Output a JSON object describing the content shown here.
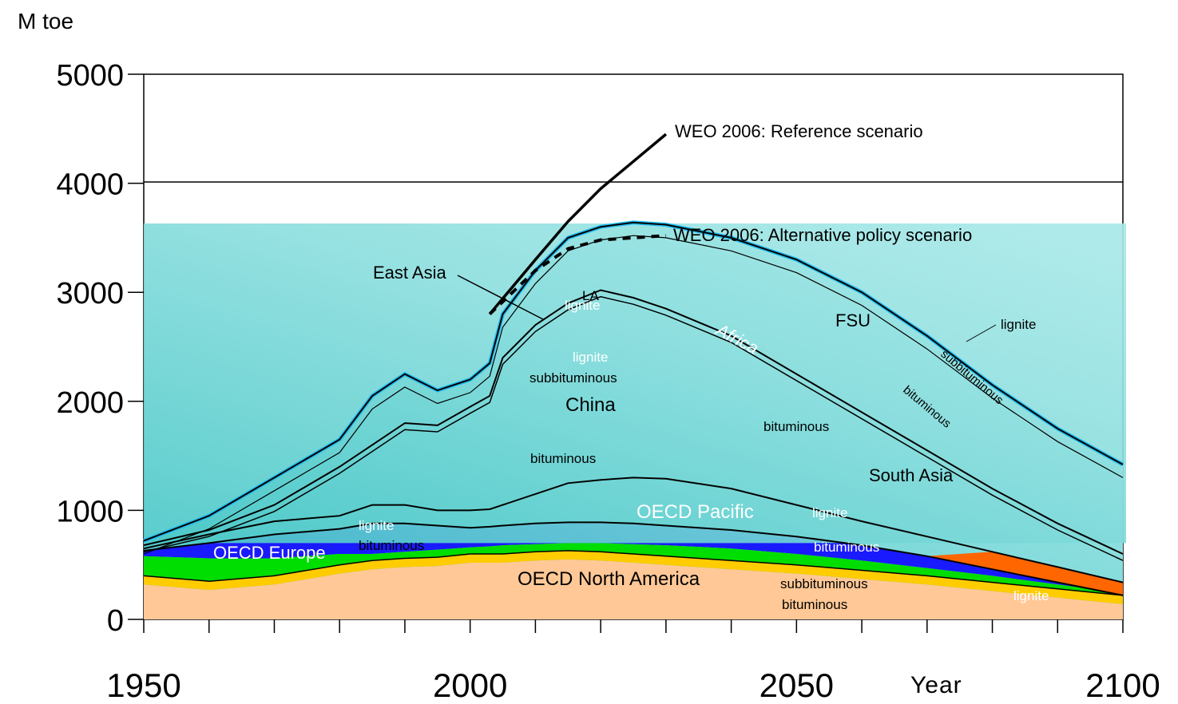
{
  "chart_data": {
    "type": "area",
    "title": "",
    "ylabel": "M toe",
    "xlabel": "Year",
    "xlim": [
      1950,
      2100
    ],
    "ylim": [
      0,
      5000
    ],
    "yticks": [
      "0",
      "1000",
      "2000",
      "3000",
      "4000",
      "5000"
    ],
    "xticks": [
      "1950",
      "2000",
      "2050",
      "2100"
    ],
    "x": [
      1950,
      1960,
      1970,
      1980,
      1985,
      1990,
      1995,
      2000,
      2003,
      2005,
      2010,
      2015,
      2020,
      2025,
      2030,
      2040,
      2050,
      2060,
      2070,
      2080,
      2090,
      2100
    ],
    "series": [
      {
        "name": "OECD North America",
        "color": "#ffc896",
        "values": [
          320,
          270,
          320,
          420,
          460,
          480,
          490,
          520,
          520,
          520,
          540,
          550,
          540,
          520,
          500,
          460,
          420,
          370,
          320,
          260,
          200,
          140
        ]
      },
      {
        "name": "OECD Europe",
        "color": "#00dd00",
        "values": [
          580,
          560,
          560,
          600,
          600,
          620,
          640,
          660,
          670,
          680,
          690,
          700,
          700,
          690,
          680,
          650,
          600,
          540,
          470,
          400,
          320,
          240
        ]
      },
      {
        "name": "OECD Pacific",
        "color": "#55cccc",
        "values": [
          630,
          700,
          780,
          830,
          880,
          880,
          860,
          840,
          850,
          860,
          880,
          890,
          890,
          880,
          860,
          820,
          760,
          680,
          580,
          460,
          340,
          220
        ]
      },
      {
        "name": "South Asia",
        "color": "#55cccc",
        "values": [
          650,
          780,
          900,
          950,
          1050,
          1050,
          1000,
          1000,
          1010,
          1050,
          1150,
          1250,
          1280,
          1300,
          1290,
          1200,
          1050,
          900,
          760,
          620,
          480,
          340
        ]
      },
      {
        "name": "China",
        "color": "#55cccc",
        "values": [
          680,
          820,
          1050,
          1400,
          1600,
          1800,
          1780,
          1950,
          2050,
          2400,
          2700,
          2900,
          3020,
          2950,
          2850,
          2600,
          2250,
          1900,
          1550,
          1200,
          880,
          600
        ]
      },
      {
        "name": "FSU",
        "color": "#55cccc",
        "values": [
          720,
          950,
          1300,
          1650,
          2050,
          2250,
          2100,
          2200,
          2350,
          2800,
          3200,
          3500,
          3600,
          3640,
          3620,
          3500,
          3300,
          3000,
          2600,
          2150,
          1750,
          1420
        ]
      }
    ],
    "scenarios": [
      {
        "name": "WEO 2006: Reference scenario",
        "x": [
          2003,
          2010,
          2015,
          2020,
          2025,
          2030
        ],
        "values": [
          2800,
          3300,
          3650,
          3950,
          4200,
          4450
        ]
      },
      {
        "name": "WEO 2006: Alternative policy scenario",
        "x": [
          2003,
          2010,
          2015,
          2020,
          2025,
          2030
        ],
        "values": [
          2800,
          3200,
          3400,
          3480,
          3500,
          3520
        ]
      }
    ],
    "region_labels": [
      "East Asia",
      "China",
      "FSU",
      "South Asia",
      "OECD Pacific",
      "OECD Europe",
      "OECD North America",
      "Africa",
      "LA"
    ],
    "grade_labels": [
      "lignite",
      "subbituminous",
      "bituminous"
    ],
    "grid": "horizontal at 4000",
    "legend": "none (inline labels)"
  },
  "colors": {
    "na": "#ffc896",
    "na_band": "#ffcc00",
    "europe": "#00dd00",
    "pacific_dark": "#1a1aff",
    "asia_dark": "#ff6600",
    "teal_top": "#a8e8e8",
    "teal_bottom": "#4cc8c8",
    "fsu_edge": "#22bbee"
  }
}
